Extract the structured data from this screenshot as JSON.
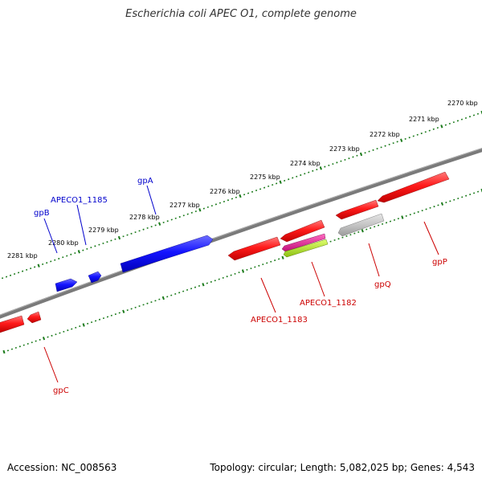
{
  "title": "Escherichia coli APEC O1, complete genome",
  "footer": {
    "accession": "Accession: NC_008563",
    "stats": "Topology: circular; Length: 5,082,025 bp; Genes: 4,543"
  },
  "colors": {
    "forward": "#0000ff",
    "reverse": "#ff0000",
    "backbone": "#7a7a7a",
    "tick": "#1a7a1a",
    "gpQ": "#bdbdbd",
    "APECO1_1182_a": "#e0188a",
    "APECO1_1182_b": "#a8e020"
  },
  "scale_labels": [
    "2270 kbp",
    "2271 kbp",
    "2272 kbp",
    "2273 kbp",
    "2274 kbp",
    "2275 kbp",
    "2276 kbp",
    "2277 kbp",
    "2278 kbp",
    "2279 kbp",
    "2280 kbp",
    "2281 kbp"
  ],
  "genes": [
    {
      "name": "gpA",
      "strand": "forward",
      "color": "forward"
    },
    {
      "name": "APECO1_1185",
      "strand": "forward",
      "color": "forward"
    },
    {
      "name": "gpB",
      "strand": "forward",
      "color": "forward"
    },
    {
      "name": "gpP",
      "strand": "reverse",
      "color": "reverse"
    },
    {
      "name": "gpQ",
      "strand": "reverse",
      "color": "gpQ"
    },
    {
      "name": "APECO1_1182",
      "strand": "reverse",
      "color": "APECO1_1182_a"
    },
    {
      "name": "APECO1_1183",
      "strand": "reverse",
      "color": "reverse"
    },
    {
      "name": "gpC",
      "strand": "reverse",
      "color": "reverse"
    }
  ]
}
